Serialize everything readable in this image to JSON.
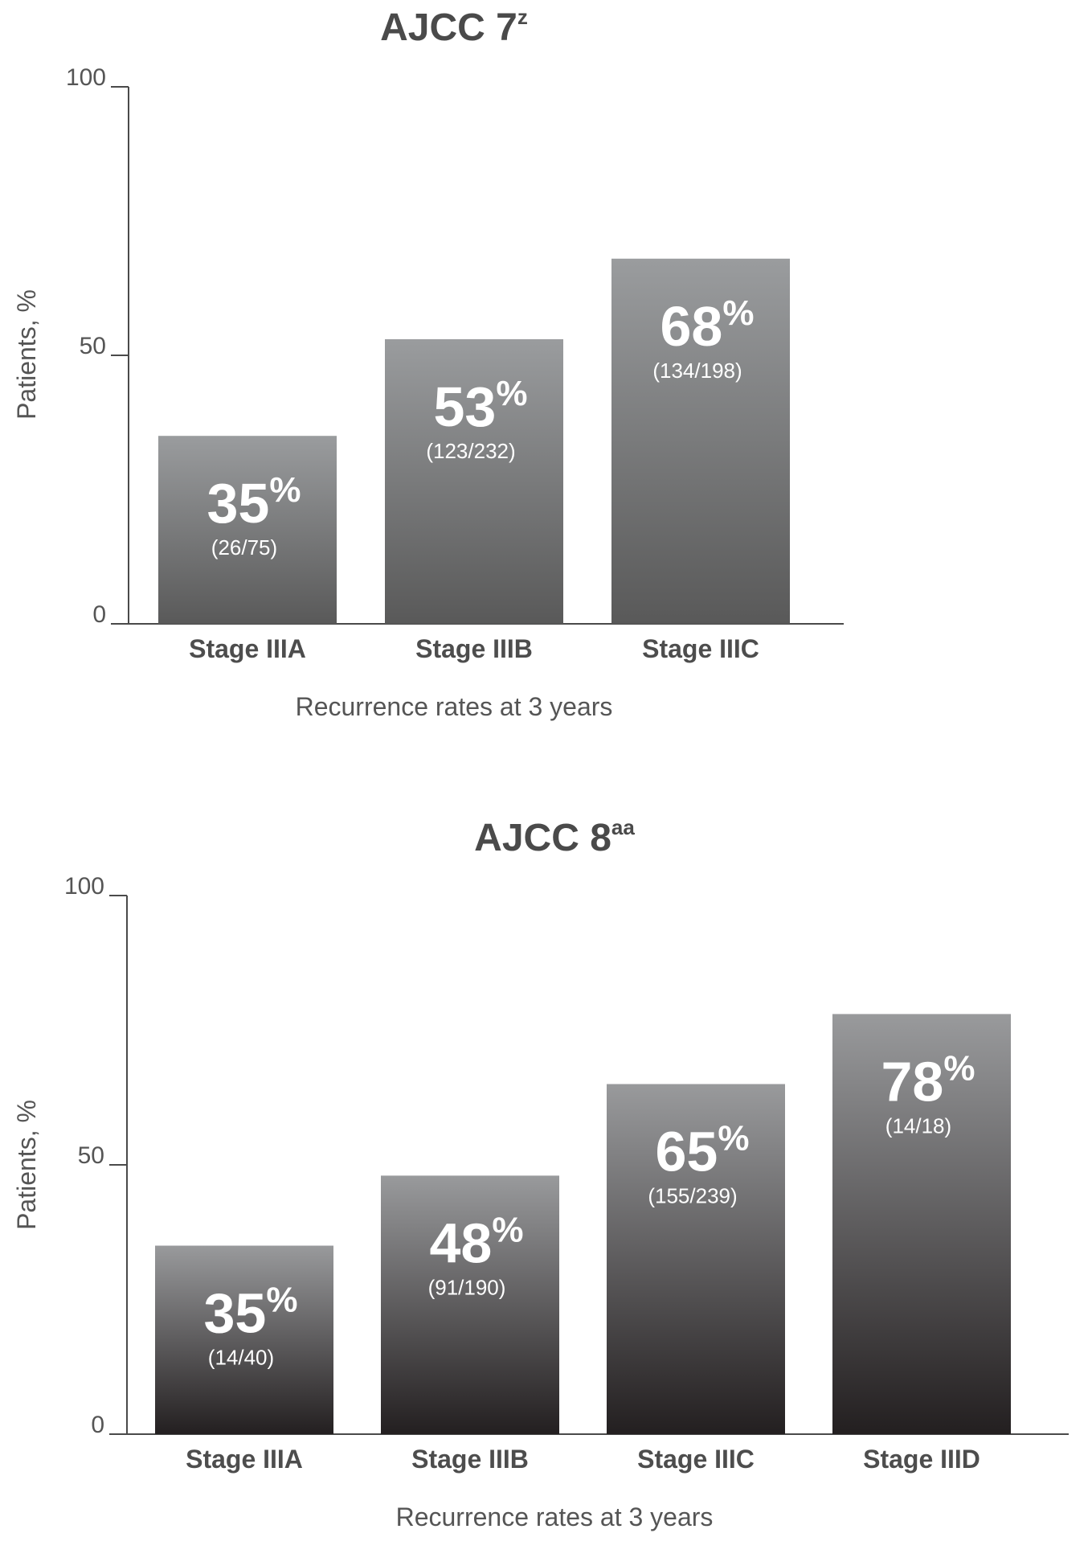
{
  "chart_data": [
    {
      "type": "bar",
      "title": "AJCC 7",
      "title_superscript": "z",
      "xlabel": "Recurrence rates at 3 years",
      "ylabel": "Patients, %",
      "ylim": [
        0,
        100
      ],
      "yticks": [
        "0",
        "50",
        "100"
      ],
      "categories": [
        "Stage IIIA",
        "Stage IIIB",
        "Stage IIIC"
      ],
      "values": [
        35,
        53,
        68
      ],
      "value_labels": [
        "35",
        "53",
        "68"
      ],
      "percent_sign": "%",
      "counts": [
        "(26/75)",
        "(123/232)",
        "(134/198)"
      ],
      "bar_gradient": [
        "#9a9c9e",
        "#595959"
      ],
      "grid": false,
      "legend": "none"
    },
    {
      "type": "bar",
      "title": "AJCC 8",
      "title_superscript": "aa",
      "xlabel": "Recurrence rates at 3 years",
      "ylabel": "Patients, %",
      "ylim": [
        0,
        100
      ],
      "yticks": [
        "0",
        "50",
        "100"
      ],
      "categories": [
        "Stage IIIA",
        "Stage IIIB",
        "Stage IIIC",
        "Stage IIID"
      ],
      "values": [
        35,
        48,
        65,
        78
      ],
      "value_labels": [
        "35",
        "48",
        "65",
        "78"
      ],
      "percent_sign": "%",
      "counts": [
        "(14/40)",
        "(91/190)",
        "(155/239)",
        "(14/18)"
      ],
      "bar_gradient": [
        "#999a9c",
        "#231f20"
      ],
      "grid": false,
      "legend": "none"
    }
  ]
}
